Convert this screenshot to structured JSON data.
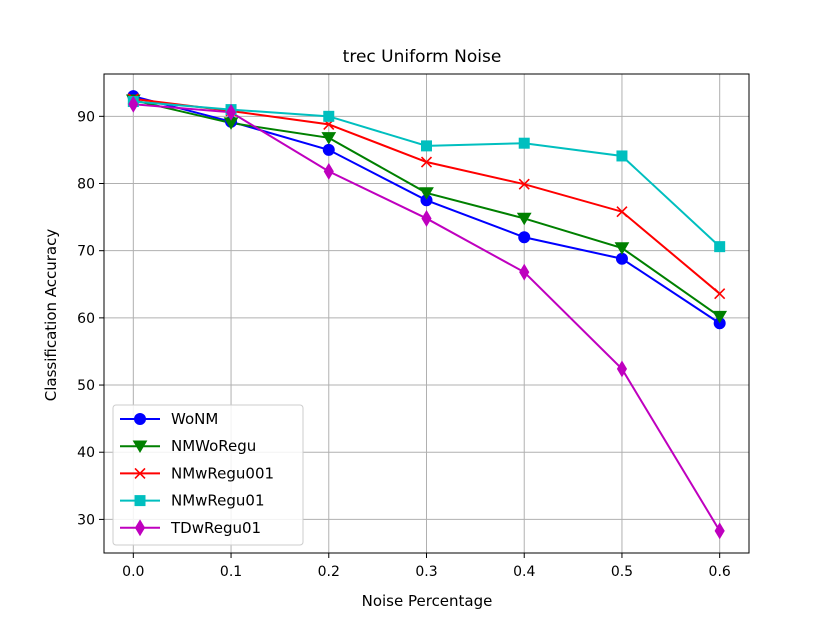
{
  "chart_data": {
    "type": "line",
    "title": "trec Uniform Noise",
    "xlabel": "Noise Percentage",
    "ylabel": "Classification Accuracy",
    "x": [
      0.0,
      0.1,
      0.2,
      0.3,
      0.4,
      0.5,
      0.6
    ],
    "x_ticks": [
      "0.0",
      "0.1",
      "0.2",
      "0.3",
      "0.4",
      "0.5",
      "0.6"
    ],
    "y_ticks": [
      "30",
      "40",
      "50",
      "60",
      "70",
      "80",
      "90"
    ],
    "xlim": [
      -0.03,
      0.63
    ],
    "ylim": [
      25.0,
      96.3
    ],
    "grid": true,
    "legend_position": "lower-left",
    "series": [
      {
        "name": "WoNM",
        "color": "#0000ff",
        "marker": "circle",
        "values": [
          93.0,
          89.2,
          85.0,
          77.5,
          72.0,
          68.8,
          59.2
        ]
      },
      {
        "name": "NMWoRegu",
        "color": "#008000",
        "marker": "triangle-down",
        "values": [
          92.4,
          89.0,
          86.8,
          78.6,
          74.8,
          70.4,
          60.2
        ]
      },
      {
        "name": "NMwRegu001",
        "color": "#ff0000",
        "marker": "x",
        "values": [
          92.6,
          90.8,
          88.8,
          83.2,
          79.9,
          75.8,
          63.6
        ]
      },
      {
        "name": "NMwRegu01",
        "color": "#00bfbf",
        "marker": "square",
        "values": [
          92.2,
          91.0,
          90.0,
          85.6,
          86.0,
          84.1,
          70.6
        ]
      },
      {
        "name": "TDwRegu01",
        "color": "#bf00bf",
        "marker": "diamond",
        "values": [
          91.8,
          90.6,
          81.8,
          74.8,
          66.8,
          52.4,
          28.3
        ]
      }
    ]
  }
}
